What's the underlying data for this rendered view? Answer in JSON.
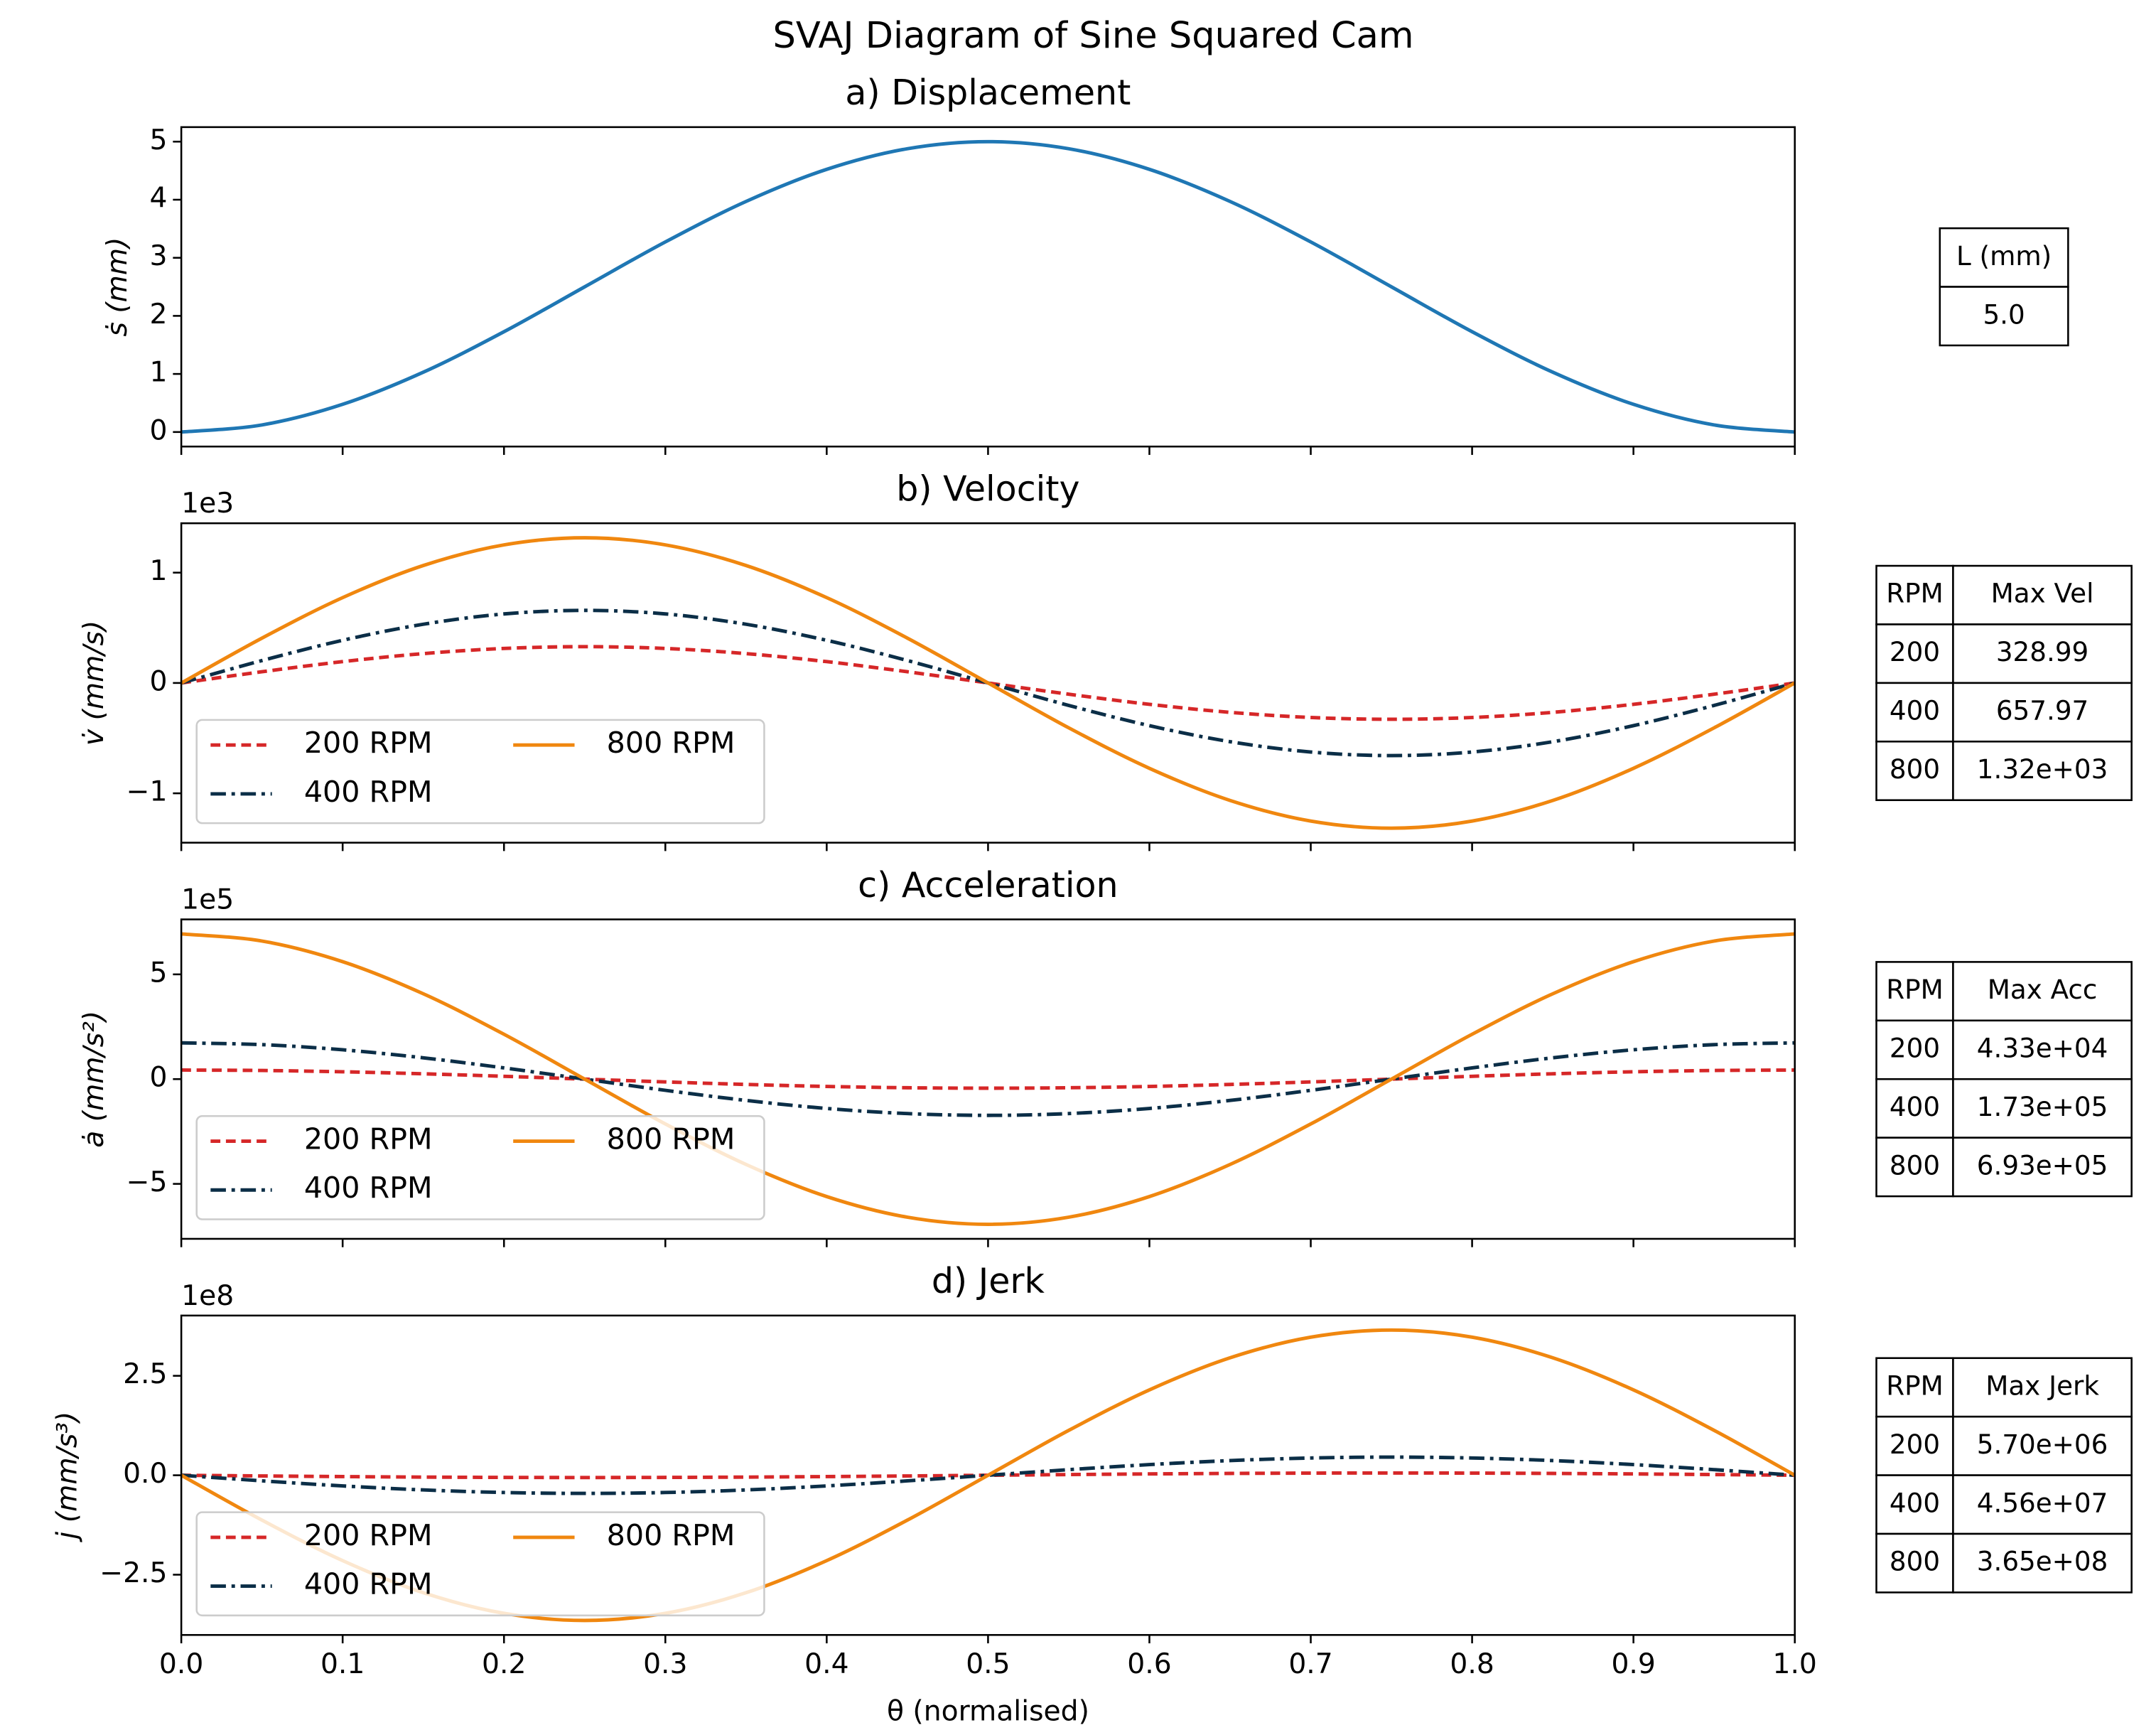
{
  "suptitle": "SVAJ Diagram of Sine Squared Cam",
  "chart_data": [
    {
      "type": "line",
      "title": "a) Displacement",
      "ylabel": "ṡ  (mm)",
      "x": [
        0,
        0.05,
        0.1,
        0.15,
        0.2,
        0.25,
        0.3,
        0.35,
        0.4,
        0.45,
        0.5,
        0.55,
        0.6,
        0.65,
        0.7,
        0.75,
        0.8,
        0.85,
        0.9,
        0.95,
        1
      ],
      "xlim": [
        0,
        1
      ],
      "ylim": [
        -0.25,
        5.25
      ],
      "yticks": [
        0,
        1,
        2,
        3,
        4,
        5
      ],
      "series": [
        {
          "color": "#1f77b4",
          "linestyle": "solid",
          "values": [
            0,
            0.122,
            0.477,
            1.03,
            1.727,
            2.5,
            3.273,
            3.97,
            4.523,
            4.878,
            5,
            4.878,
            4.523,
            3.97,
            3.273,
            2.5,
            1.727,
            1.03,
            0.477,
            0.122,
            0
          ]
        }
      ],
      "table": {
        "columns": [
          "L (mm)"
        ],
        "rows": [
          [
            "5.0"
          ]
        ]
      }
    },
    {
      "type": "line",
      "title": "b) Velocity",
      "ylabel": "v̇  (mm/s)",
      "offset_text": "1e3",
      "x": [
        0,
        0.05,
        0.1,
        0.15,
        0.2,
        0.25,
        0.3,
        0.35,
        0.4,
        0.45,
        0.5,
        0.55,
        0.6,
        0.65,
        0.7,
        0.75,
        0.8,
        0.85,
        0.9,
        0.95,
        1
      ],
      "xlim": [
        0,
        1
      ],
      "ylim": [
        -1447.5,
        1447.5
      ],
      "yticks": [
        {
          "value": -1000,
          "label": "−1"
        },
        0,
        {
          "value": 1000,
          "label": "1"
        }
      ],
      "legend": "lower left",
      "legend_columns": 2,
      "series": [
        {
          "name": "200 RPM",
          "color": "#d62728",
          "linestyle": "dashed",
          "values": [
            0,
            101.7,
            193.4,
            266.2,
            312.9,
            329.0,
            312.9,
            266.2,
            193.4,
            101.7,
            0,
            -101.7,
            -193.4,
            -266.2,
            -312.9,
            -329.0,
            -312.9,
            -266.2,
            -193.4,
            -101.7,
            0
          ]
        },
        {
          "name": "400 RPM",
          "color": "#0b2e47",
          "linestyle": "dashdot",
          "values": [
            0,
            203.3,
            386.8,
            532.3,
            625.8,
            658.0,
            625.8,
            532.3,
            386.8,
            203.3,
            0,
            -203.3,
            -386.8,
            -532.3,
            -625.8,
            -658.0,
            -625.8,
            -532.3,
            -386.8,
            -203.3,
            0
          ]
        },
        {
          "name": "800 RPM",
          "color": "#f0870f",
          "linestyle": "solid",
          "values": [
            0,
            406.6,
            773.5,
            1064.6,
            1251.5,
            1315.9,
            1251.5,
            1064.6,
            773.5,
            406.6,
            0,
            -406.6,
            -773.5,
            -1064.6,
            -1251.5,
            -1315.9,
            -1251.5,
            -1064.6,
            -773.5,
            -406.6,
            0
          ]
        }
      ],
      "table": {
        "columns": [
          "RPM",
          "Max Vel"
        ],
        "rows": [
          [
            "200",
            "328.99"
          ],
          [
            "400",
            "657.97"
          ],
          [
            "800",
            "1.32e+03"
          ]
        ]
      }
    },
    {
      "type": "line",
      "title": "c) Acceleration",
      "ylabel": "ȧ  (mm/s²)",
      "offset_text": "1e5",
      "x": [
        0,
        0.05,
        0.1,
        0.15,
        0.2,
        0.25,
        0.3,
        0.35,
        0.4,
        0.45,
        0.5,
        0.55,
        0.6,
        0.65,
        0.7,
        0.75,
        0.8,
        0.85,
        0.9,
        0.95,
        1
      ],
      "xlim": [
        0,
        1
      ],
      "ylim": [
        -762300,
        762300
      ],
      "yticks": [
        {
          "value": -500000,
          "label": "−5"
        },
        0,
        {
          "value": 500000,
          "label": "5"
        }
      ],
      "legend": "lower left",
      "legend_columns": 2,
      "series": [
        {
          "name": "200 RPM",
          "color": "#d62728",
          "linestyle": "dashed",
          "values": [
            43300,
            41180,
            35030,
            25450,
            13380,
            0,
            -13380,
            -25450,
            -35030,
            -41180,
            -43300,
            -41180,
            -35030,
            -25450,
            -13380,
            0,
            13380,
            25450,
            35030,
            41180,
            43300
          ]
        },
        {
          "name": "400 RPM",
          "color": "#0b2e47",
          "linestyle": "dashdot",
          "values": [
            173000,
            164500,
            140000,
            101700,
            53460,
            0,
            -53460,
            -101700,
            -140000,
            -164500,
            -173000,
            -164500,
            -140000,
            -101700,
            -53460,
            0,
            53460,
            101700,
            140000,
            164500,
            173000
          ]
        },
        {
          "name": "800 RPM",
          "color": "#f0870f",
          "linestyle": "solid",
          "values": [
            693000,
            659000,
            560600,
            407300,
            214100,
            0,
            -214100,
            -407300,
            -560600,
            -659000,
            -693000,
            -659000,
            -560600,
            -407300,
            -214100,
            0,
            214100,
            407300,
            560600,
            659000,
            693000
          ]
        }
      ],
      "table": {
        "columns": [
          "RPM",
          "Max Acc"
        ],
        "rows": [
          [
            "200",
            "4.33e+04"
          ],
          [
            "400",
            "1.73e+05"
          ],
          [
            "800",
            "6.93e+05"
          ]
        ]
      }
    },
    {
      "type": "line",
      "title": "d) Jerk",
      "ylabel": "j̇  (mm/s³)",
      "offset_text": "1e8",
      "xlabel": "θ (normalised)",
      "x": [
        0,
        0.05,
        0.1,
        0.15,
        0.2,
        0.25,
        0.3,
        0.35,
        0.4,
        0.45,
        0.5,
        0.55,
        0.6,
        0.65,
        0.7,
        0.75,
        0.8,
        0.85,
        0.9,
        0.95,
        1
      ],
      "xlim": [
        0,
        1
      ],
      "ylim": [
        -401500000,
        401500000
      ],
      "xticks": [
        {
          "value": 0,
          "label": "0.0"
        },
        0.1,
        0.2,
        0.3,
        0.4,
        0.5,
        0.6,
        0.7,
        0.8,
        0.9,
        {
          "value": 1,
          "label": "1.0"
        }
      ],
      "yticks": [
        {
          "value": -250000000,
          "label": "−2.5"
        },
        {
          "value": 0,
          "label": "0.0"
        },
        {
          "value": 250000000,
          "label": "2.5"
        }
      ],
      "legend": "lower left",
      "legend_columns": 2,
      "series": [
        {
          "name": "200 RPM",
          "color": "#d62728",
          "linestyle": "dashed",
          "values": [
            0,
            -1761000,
            -3350000,
            -4611000,
            -5421000,
            -5700000,
            -5421000,
            -4611000,
            -3350000,
            -1761000,
            0,
            1761000,
            3350000,
            4611000,
            5421000,
            5700000,
            5421000,
            4611000,
            3350000,
            1761000,
            0
          ]
        },
        {
          "name": "400 RPM",
          "color": "#0b2e47",
          "linestyle": "dashdot",
          "values": [
            0,
            -14090000,
            -26800000,
            -36890000,
            -43370000,
            -45600000,
            -43370000,
            -36890000,
            -26800000,
            -14090000,
            0,
            14090000,
            26800000,
            36890000,
            43370000,
            45600000,
            43370000,
            36890000,
            26800000,
            14090000,
            0
          ]
        },
        {
          "name": "800 RPM",
          "color": "#f0870f",
          "linestyle": "solid",
          "values": [
            0,
            -112800000,
            -214600000,
            -295300000,
            -347100000,
            -365000000,
            -347100000,
            -295300000,
            -214600000,
            -112800000,
            0,
            112800000,
            214600000,
            295300000,
            347100000,
            365000000,
            347100000,
            295300000,
            214600000,
            112800000,
            0
          ]
        }
      ],
      "table": {
        "columns": [
          "RPM",
          "Max Jerk"
        ],
        "rows": [
          [
            "200",
            "5.70e+06"
          ],
          [
            "400",
            "4.56e+07"
          ],
          [
            "800",
            "3.65e+08"
          ]
        ]
      }
    }
  ]
}
